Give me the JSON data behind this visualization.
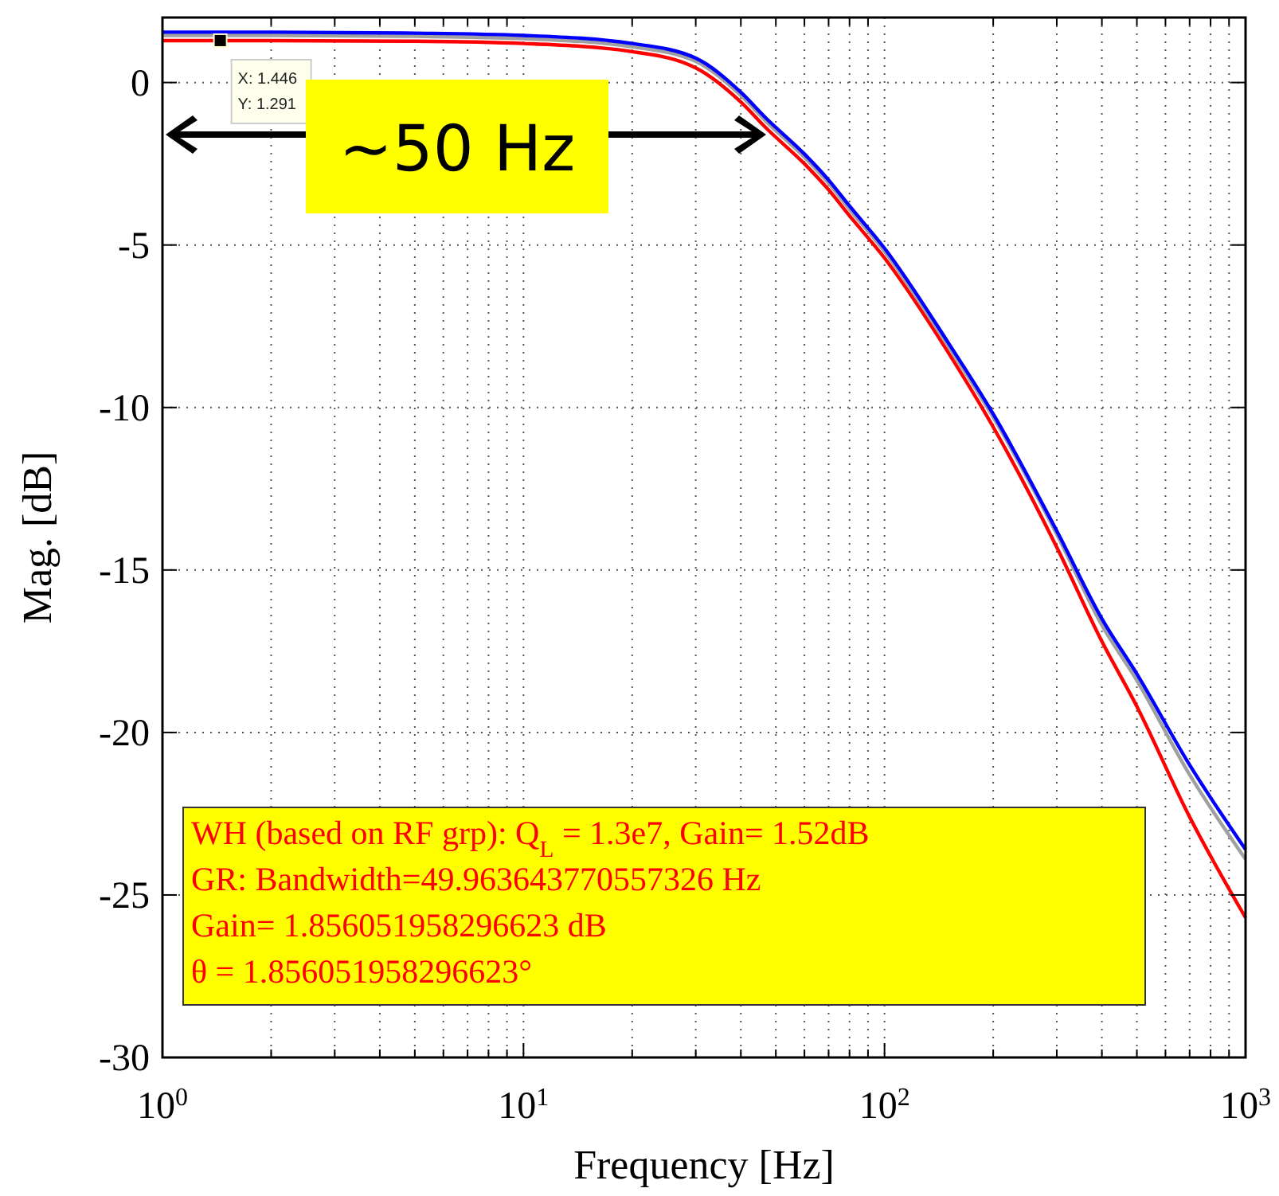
{
  "chart_data": {
    "type": "line",
    "xlabel": "Frequency [Hz]",
    "ylabel": "Mag. [dB]",
    "log": "x",
    "grid": true,
    "line_style": "solid",
    "marker": "none",
    "x": [
      1,
      2,
      5,
      10,
      20,
      30,
      40,
      47,
      60,
      70,
      80,
      100,
      150,
      200,
      300,
      400,
      500,
      700,
      1000
    ],
    "series": [
      {
        "color": "#ff0000",
        "values": [
          1.29,
          1.29,
          1.27,
          1.2,
          0.95,
          0.45,
          -0.6,
          -1.4,
          -2.5,
          -3.3,
          -4.1,
          -5.4,
          -8.3,
          -10.6,
          -14.3,
          -17.2,
          -19.2,
          -22.6,
          -25.7
        ]
      },
      {
        "color": "#a0a0a0",
        "values": [
          1.45,
          1.45,
          1.42,
          1.35,
          1.1,
          0.65,
          -0.4,
          -1.2,
          -2.3,
          -3.1,
          -3.9,
          -5.2,
          -8.1,
          -10.3,
          -13.9,
          -16.7,
          -18.4,
          -21.3,
          -23.9
        ]
      },
      {
        "color": "#0000ff",
        "values": [
          1.55,
          1.55,
          1.52,
          1.45,
          1.2,
          0.75,
          -0.3,
          -1.1,
          -2.2,
          -3.0,
          -3.8,
          -5.1,
          -8.0,
          -10.2,
          -13.8,
          -16.5,
          -18.2,
          -21.0,
          -23.6
        ]
      }
    ],
    "xlim": [
      1,
      1000
    ],
    "xticks": [
      {
        "value": 1,
        "label": "10$^{0}$"
      },
      {
        "value": 10,
        "label": "10$^{1}$"
      },
      {
        "value": 100,
        "label": "10$^{2}$"
      },
      {
        "value": 1000,
        "label": "10$^{3}$"
      }
    ],
    "ylim": [
      -30,
      2
    ],
    "yticks": [
      -30,
      -25,
      -20,
      -15,
      -10,
      -5,
      0
    ],
    "annotations": [
      {
        "text": "X: 1.446\nY: 1.291",
        "x": 1.446,
        "y": 1.291
      },
      {
        "text": "~50 Hz",
        "x": 47,
        "y": -1.6
      },
      "WH (based on RF grp): Q$_{L}$ = 1.3e7, Gain= 1.52dB\nGR: Bandwidth=49.963643770557326 Hz\nGain= 1.856051958296623 dB\nθ = 1.856051958296623°"
    ]
  }
}
